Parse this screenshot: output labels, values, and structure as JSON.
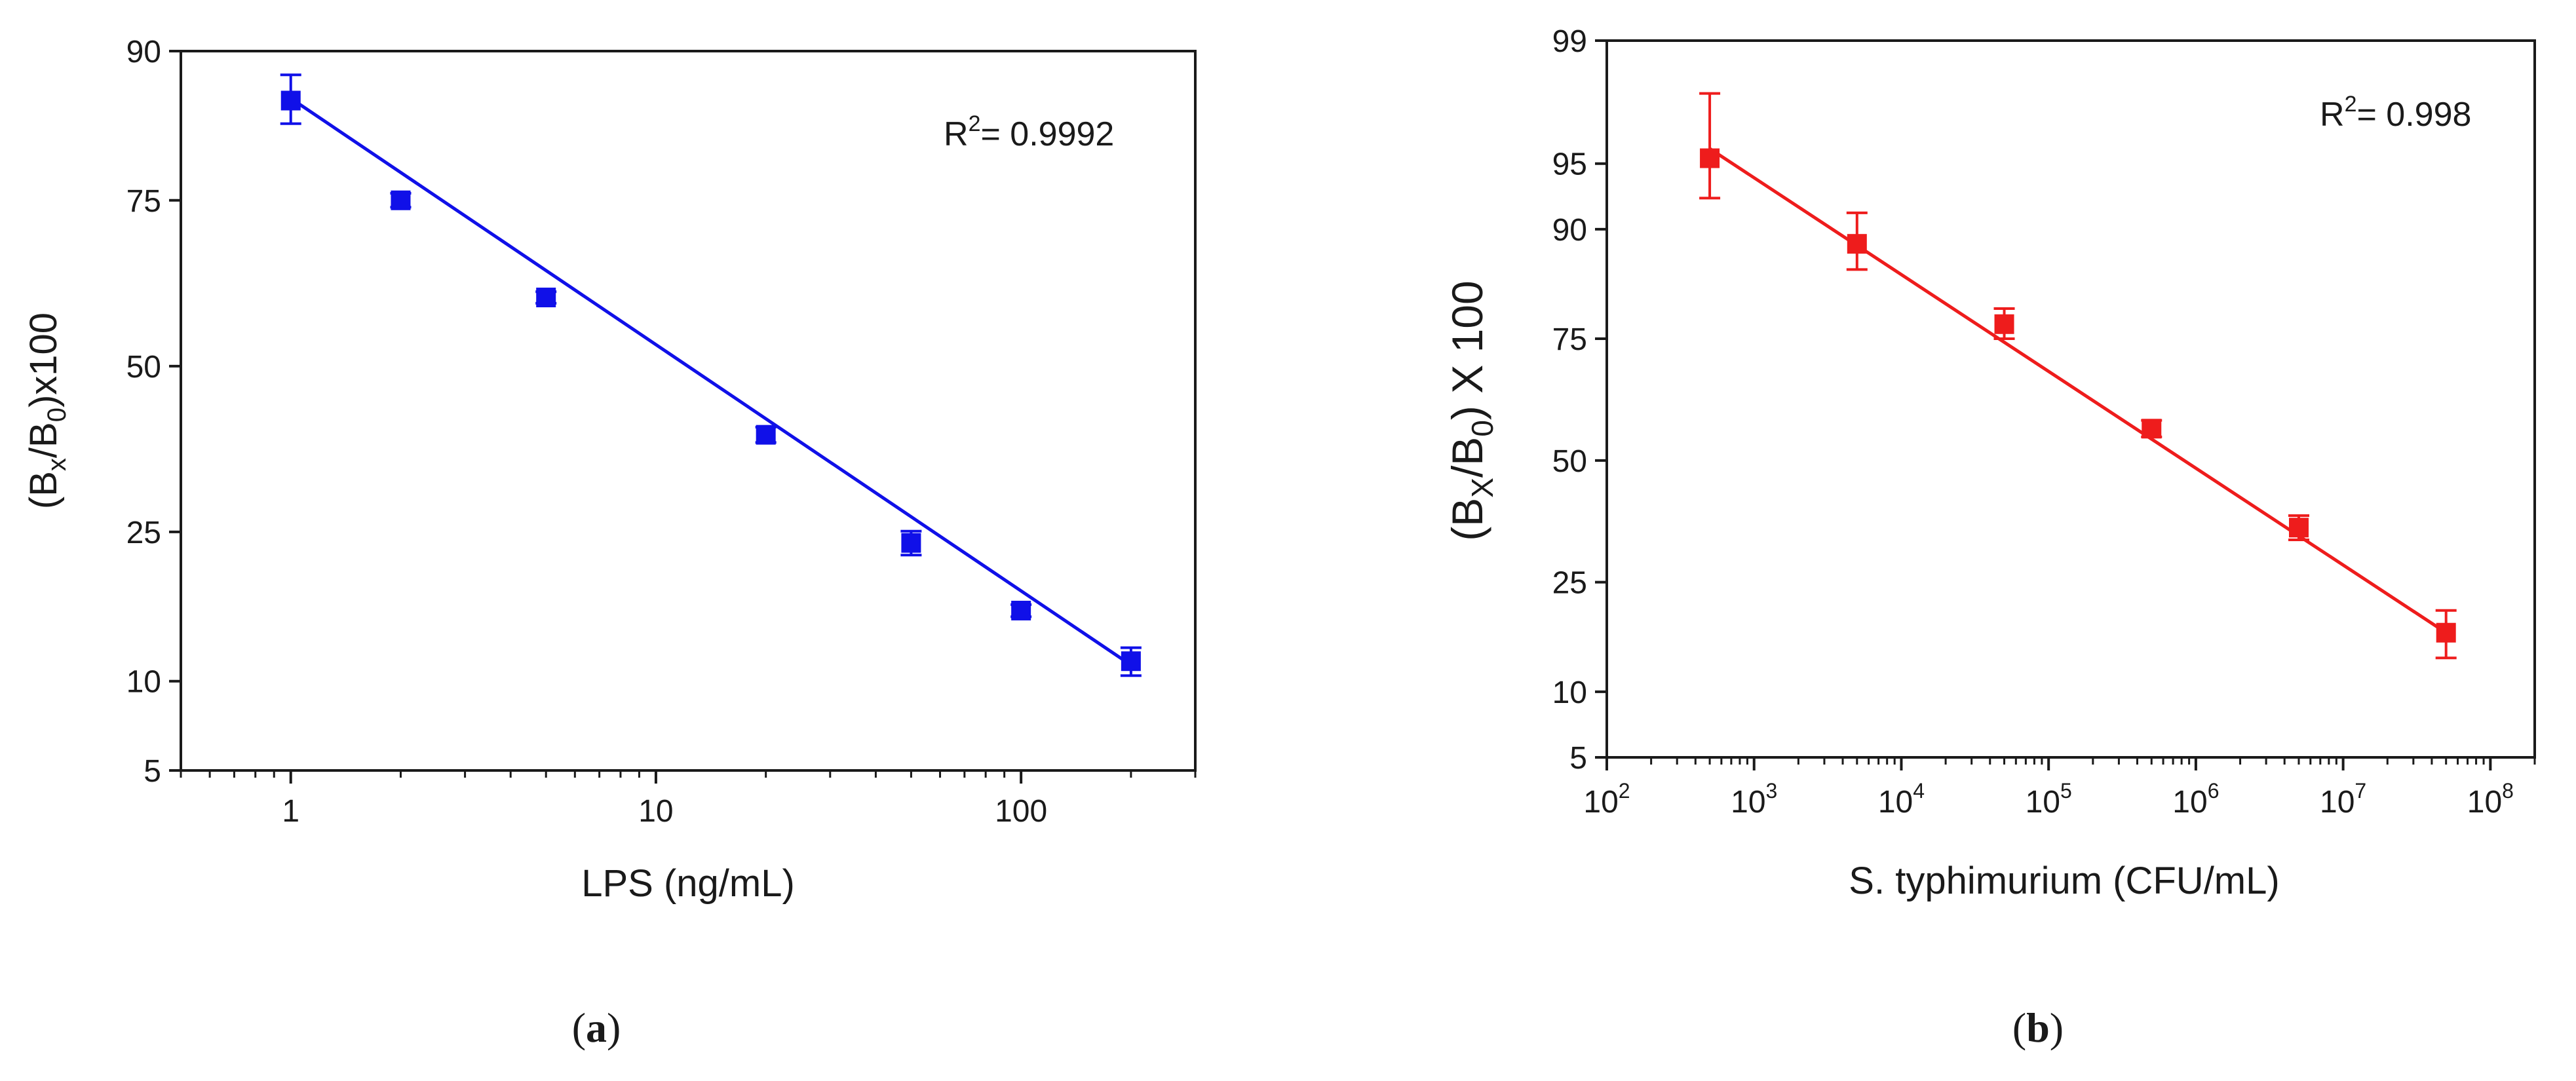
{
  "chart_data": [
    {
      "id": "a",
      "type": "scatter",
      "panel_label": "a",
      "xlabel": "LPS (ng/mL)",
      "ylabel_prefix": "(B",
      "ylabel_sub1": "x",
      "ylabel_mid": "/B",
      "ylabel_sub2": "0",
      "ylabel_suffix": ")x100",
      "x_scale": "log",
      "xlim": [
        0.5,
        300
      ],
      "x_ticks": [
        "1",
        "10",
        "100"
      ],
      "y_scale": "probit",
      "ylim": [
        5,
        90
      ],
      "y_ticks": [
        "5",
        "10",
        "25",
        "50",
        "75",
        "90"
      ],
      "annotation_text": "R",
      "annotation_sup": "2",
      "annotation_value": "= 0.9992",
      "color": "#1010e8",
      "series": [
        {
          "name": "LPS",
          "x": [
            1,
            2,
            5,
            20,
            50,
            100,
            200
          ],
          "y": [
            86,
            75,
            61,
            39,
            23.6,
            16,
            11.5
          ],
          "err": [
            2.2,
            0.9,
            0.9,
            1.2,
            1.5,
            0.6,
            1.1
          ],
          "fit": {
            "x": [
              1,
              200
            ],
            "y": [
              86.2,
              11.2
            ]
          }
        }
      ]
    },
    {
      "id": "b",
      "type": "scatter",
      "panel_label": "b",
      "xlabel": "S. typhimurium (CFU/mL)",
      "ylabel_prefix": "(B",
      "ylabel_sub1": "X",
      "ylabel_mid": "/B",
      "ylabel_sub2": "0",
      "ylabel_suffix": ") X 100",
      "x_scale": "log",
      "xlim": [
        100,
        200000000
      ],
      "x_tick_base": "10",
      "x_tick_exponents": [
        "2",
        "3",
        "4",
        "5",
        "6",
        "7",
        "8"
      ],
      "y_scale": "probit",
      "ylim": [
        5,
        99
      ],
      "y_ticks": [
        "5",
        "10",
        "25",
        "50",
        "75",
        "90",
        "95",
        "99"
      ],
      "annotation_text": "R",
      "annotation_sup": "2",
      "annotation_value": "= 0.998",
      "color": "#ee1c1c",
      "series": [
        {
          "name": "S. typhimurium",
          "x": [
            500,
            5000,
            50000,
            500000,
            5000000,
            50000000
          ],
          "y": [
            95.3,
            88.5,
            77.5,
            57,
            35.5,
            17
          ],
          "err": [
            2.6,
            3,
            2.5,
            1.8,
            2.5,
            3.3
          ],
          "fit": {
            "x": [
              500,
              50000000
            ],
            "y": [
              95.8,
              17
            ]
          }
        }
      ]
    }
  ]
}
